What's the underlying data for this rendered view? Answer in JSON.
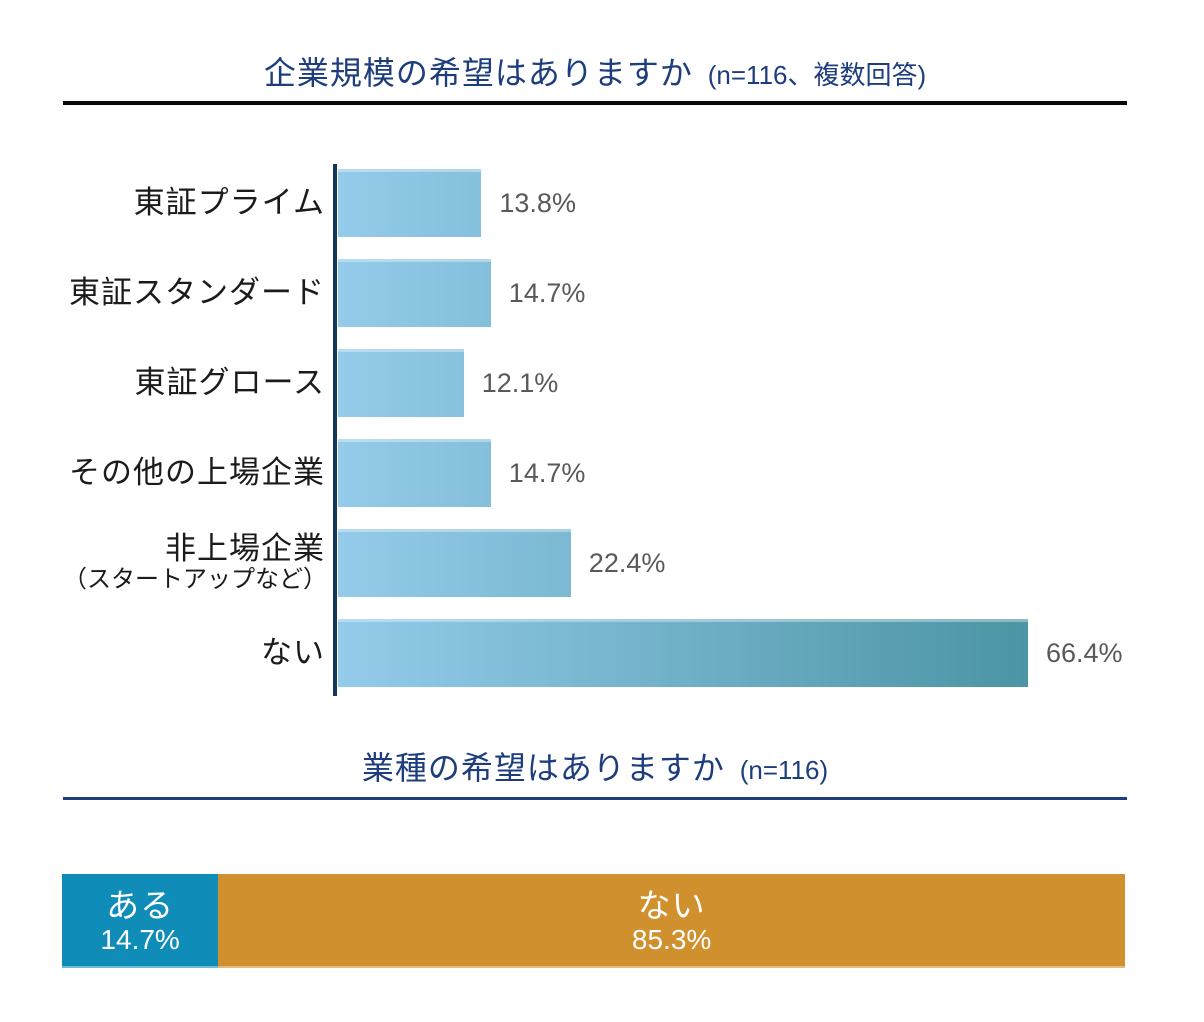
{
  "colors": {
    "title_navy": "#1d3d7d",
    "rule_black": "#0a0a0a",
    "axis_navy": "#17365d",
    "category_black": "#1b1b1b",
    "value_gray": "#595959",
    "bar_gradient_start": "#94cbea",
    "bar_gradient_end": "#4b95a4",
    "stacked_yes_blue": "#0f8cb8",
    "stacked_no_orange": "#d0902d",
    "segment_text": "#ffffff"
  },
  "chart_data": [
    {
      "type": "bar",
      "orientation": "horizontal",
      "title": "企業規模の希望はありますか",
      "title_note": "(n=116、複数回答)",
      "categories": [
        "東証プライム",
        "東証スタンダード",
        "東証グロース",
        "その他の上場企業",
        "非上場企業",
        "ない"
      ],
      "category_sublabels": [
        "",
        "",
        "",
        "",
        "（スタートアップなど）",
        ""
      ],
      "values": [
        13.8,
        14.7,
        12.1,
        14.7,
        22.4,
        66.4
      ],
      "value_labels": [
        "13.8%",
        "14.7%",
        "12.1%",
        "14.7%",
        "22.4%",
        "66.4%"
      ],
      "xlim": [
        0,
        66.4
      ],
      "grid": false,
      "legend": "none",
      "value_label_position": "outside-end"
    },
    {
      "type": "bar",
      "subtype": "stacked-100",
      "orientation": "horizontal",
      "title": "業種の希望はありますか",
      "title_note": "(n=116)",
      "segments": [
        {
          "label": "ある",
          "value": 14.7,
          "value_label": "14.7%",
          "color": "#0f8cb8"
        },
        {
          "label": "ない",
          "value": 85.3,
          "value_label": "85.3%",
          "color": "#d0902d"
        }
      ],
      "grid": false,
      "legend": "none"
    }
  ]
}
